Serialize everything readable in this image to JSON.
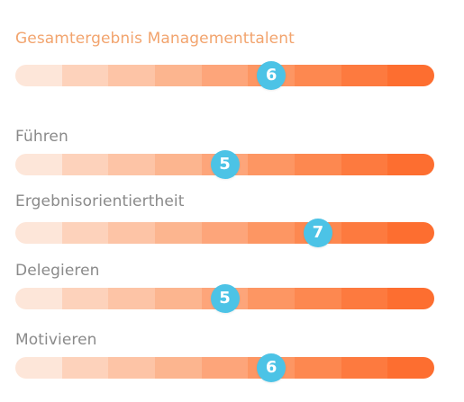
{
  "scale": {
    "min": 1,
    "max": 9,
    "segment_colors": [
      "#fde6d9",
      "#fdd2bb",
      "#fdc4a6",
      "#fcb58f",
      "#fda57a",
      "#fd9663",
      "#fd8850",
      "#fd7a3f",
      "#fd6e30"
    ]
  },
  "marker_color": "#4cc3e6",
  "overall": {
    "label": "Gesamtergebnis Managementtalent",
    "score": 6,
    "score_text": "6"
  },
  "items": [
    {
      "label": "Führen",
      "score": 5,
      "score_text": "5"
    },
    {
      "label": "Ergebnisorientiertheit",
      "score": 7,
      "score_text": "7"
    },
    {
      "label": "Delegieren",
      "score": 5,
      "score_text": "5"
    },
    {
      "label": "Motivieren",
      "score": 6,
      "score_text": "6"
    }
  ]
}
